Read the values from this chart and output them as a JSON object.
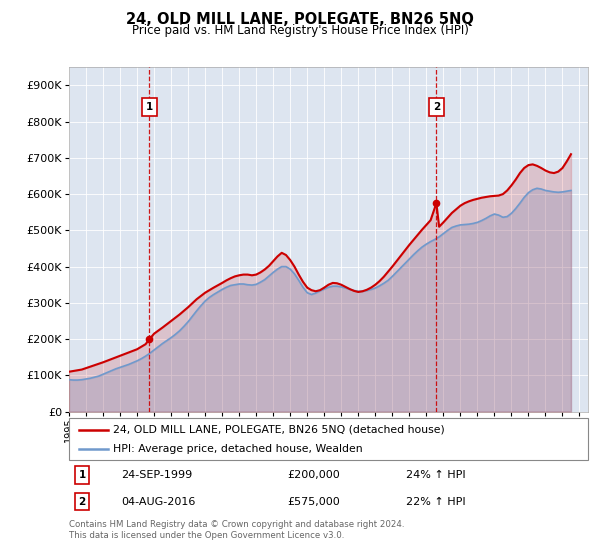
{
  "title": "24, OLD MILL LANE, POLEGATE, BN26 5NQ",
  "subtitle": "Price paid vs. HM Land Registry's House Price Index (HPI)",
  "ylim": [
    0,
    950000
  ],
  "yticks": [
    0,
    100000,
    200000,
    300000,
    400000,
    500000,
    600000,
    700000,
    800000,
    900000
  ],
  "xlim_start": 1995.0,
  "xlim_end": 2025.5,
  "bg_color": "#dde5f0",
  "red_color": "#cc0000",
  "blue_color": "#7099cc",
  "transaction1_date": 1999.73,
  "transaction1_price": 200000,
  "transaction2_date": 2016.59,
  "transaction2_price": 575000,
  "legend_line1": "24, OLD MILL LANE, POLEGATE, BN26 5NQ (detached house)",
  "legend_line2": "HPI: Average price, detached house, Wealden",
  "table_row1_num": "1",
  "table_row1_date": "24-SEP-1999",
  "table_row1_price": "£200,000",
  "table_row1_hpi": "24% ↑ HPI",
  "table_row2_num": "2",
  "table_row2_date": "04-AUG-2016",
  "table_row2_price": "£575,000",
  "table_row2_hpi": "22% ↑ HPI",
  "footer": "Contains HM Land Registry data © Crown copyright and database right 2024.\nThis data is licensed under the Open Government Licence v3.0.",
  "hpi_years": [
    1995.0,
    1995.25,
    1995.5,
    1995.75,
    1996.0,
    1996.25,
    1996.5,
    1996.75,
    1997.0,
    1997.25,
    1997.5,
    1997.75,
    1998.0,
    1998.25,
    1998.5,
    1998.75,
    1999.0,
    1999.25,
    1999.5,
    1999.75,
    2000.0,
    2000.25,
    2000.5,
    2000.75,
    2001.0,
    2001.25,
    2001.5,
    2001.75,
    2002.0,
    2002.25,
    2002.5,
    2002.75,
    2003.0,
    2003.25,
    2003.5,
    2003.75,
    2004.0,
    2004.25,
    2004.5,
    2004.75,
    2005.0,
    2005.25,
    2005.5,
    2005.75,
    2006.0,
    2006.25,
    2006.5,
    2006.75,
    2007.0,
    2007.25,
    2007.5,
    2007.75,
    2008.0,
    2008.25,
    2008.5,
    2008.75,
    2009.0,
    2009.25,
    2009.5,
    2009.75,
    2010.0,
    2010.25,
    2010.5,
    2010.75,
    2011.0,
    2011.25,
    2011.5,
    2011.75,
    2012.0,
    2012.25,
    2012.5,
    2012.75,
    2013.0,
    2013.25,
    2013.5,
    2013.75,
    2014.0,
    2014.25,
    2014.5,
    2014.75,
    2015.0,
    2015.25,
    2015.5,
    2015.75,
    2016.0,
    2016.25,
    2016.5,
    2016.75,
    2017.0,
    2017.25,
    2017.5,
    2017.75,
    2018.0,
    2018.25,
    2018.5,
    2018.75,
    2019.0,
    2019.25,
    2019.5,
    2019.75,
    2020.0,
    2020.25,
    2020.5,
    2020.75,
    2021.0,
    2021.25,
    2021.5,
    2021.75,
    2022.0,
    2022.25,
    2022.5,
    2022.75,
    2023.0,
    2023.25,
    2023.5,
    2023.75,
    2024.0,
    2024.25,
    2024.5
  ],
  "hpi_values": [
    88000,
    87000,
    87000,
    88000,
    90000,
    92000,
    95000,
    98000,
    103000,
    108000,
    113000,
    118000,
    122000,
    126000,
    130000,
    135000,
    140000,
    146000,
    153000,
    161000,
    170000,
    179000,
    188000,
    196000,
    204000,
    213000,
    223000,
    235000,
    248000,
    263000,
    278000,
    292000,
    305000,
    315000,
    323000,
    330000,
    337000,
    343000,
    348000,
    350000,
    352000,
    352000,
    350000,
    349000,
    351000,
    357000,
    364000,
    374000,
    384000,
    393000,
    400000,
    400000,
    393000,
    380000,
    362000,
    343000,
    328000,
    323000,
    327000,
    333000,
    338000,
    343000,
    346000,
    346000,
    344000,
    341000,
    337000,
    334000,
    332000,
    332000,
    334000,
    337000,
    341000,
    347000,
    354000,
    362000,
    373000,
    385000,
    397000,
    409000,
    421000,
    433000,
    444000,
    454000,
    462000,
    469000,
    475000,
    482000,
    491000,
    500000,
    508000,
    512000,
    515000,
    516000,
    517000,
    519000,
    522000,
    527000,
    533000,
    540000,
    545000,
    542000,
    536000,
    538000,
    547000,
    560000,
    575000,
    591000,
    604000,
    612000,
    616000,
    614000,
    610000,
    608000,
    606000,
    605000,
    606000,
    608000,
    610000
  ],
  "price_years": [
    1995.0,
    1995.25,
    1995.5,
    1995.75,
    1996.0,
    1996.5,
    1997.0,
    1997.5,
    1998.0,
    1998.5,
    1999.0,
    1999.5,
    1999.73,
    2000.0,
    2000.5,
    2001.0,
    2001.5,
    2002.0,
    2002.5,
    2003.0,
    2003.5,
    2004.0,
    2004.25,
    2004.5,
    2004.75,
    2005.0,
    2005.25,
    2005.5,
    2005.75,
    2006.0,
    2006.25,
    2006.5,
    2006.75,
    2007.0,
    2007.25,
    2007.5,
    2007.75,
    2008.0,
    2008.25,
    2008.5,
    2008.75,
    2009.0,
    2009.25,
    2009.5,
    2009.75,
    2010.0,
    2010.25,
    2010.5,
    2010.75,
    2011.0,
    2011.25,
    2011.5,
    2011.75,
    2012.0,
    2012.25,
    2012.5,
    2012.75,
    2013.0,
    2013.25,
    2013.5,
    2013.75,
    2014.0,
    2014.25,
    2014.5,
    2014.75,
    2015.0,
    2015.25,
    2015.5,
    2015.75,
    2016.0,
    2016.25,
    2016.59,
    2016.75,
    2017.0,
    2017.25,
    2017.5,
    2017.75,
    2018.0,
    2018.25,
    2018.5,
    2018.75,
    2019.0,
    2019.25,
    2019.5,
    2019.75,
    2020.0,
    2020.25,
    2020.5,
    2020.75,
    2021.0,
    2021.25,
    2021.5,
    2021.75,
    2022.0,
    2022.25,
    2022.5,
    2022.75,
    2023.0,
    2023.25,
    2023.5,
    2023.75,
    2024.0,
    2024.25,
    2024.5
  ],
  "price_values": [
    110000,
    112000,
    114000,
    116000,
    120000,
    128000,
    136000,
    145000,
    154000,
    163000,
    172000,
    186000,
    200000,
    215000,
    232000,
    250000,
    268000,
    288000,
    310000,
    328000,
    342000,
    355000,
    362000,
    368000,
    373000,
    376000,
    378000,
    378000,
    376000,
    378000,
    384000,
    392000,
    402000,
    415000,
    428000,
    438000,
    432000,
    418000,
    400000,
    378000,
    358000,
    342000,
    335000,
    332000,
    335000,
    342000,
    350000,
    355000,
    354000,
    350000,
    344000,
    338000,
    333000,
    330000,
    332000,
    336000,
    342000,
    350000,
    360000,
    372000,
    386000,
    400000,
    415000,
    430000,
    445000,
    460000,
    474000,
    488000,
    502000,
    515000,
    528000,
    575000,
    510000,
    522000,
    535000,
    548000,
    558000,
    568000,
    575000,
    580000,
    584000,
    587000,
    590000,
    592000,
    594000,
    595000,
    596000,
    600000,
    610000,
    624000,
    640000,
    658000,
    672000,
    680000,
    682000,
    678000,
    672000,
    665000,
    660000,
    658000,
    662000,
    672000,
    690000,
    710000
  ]
}
